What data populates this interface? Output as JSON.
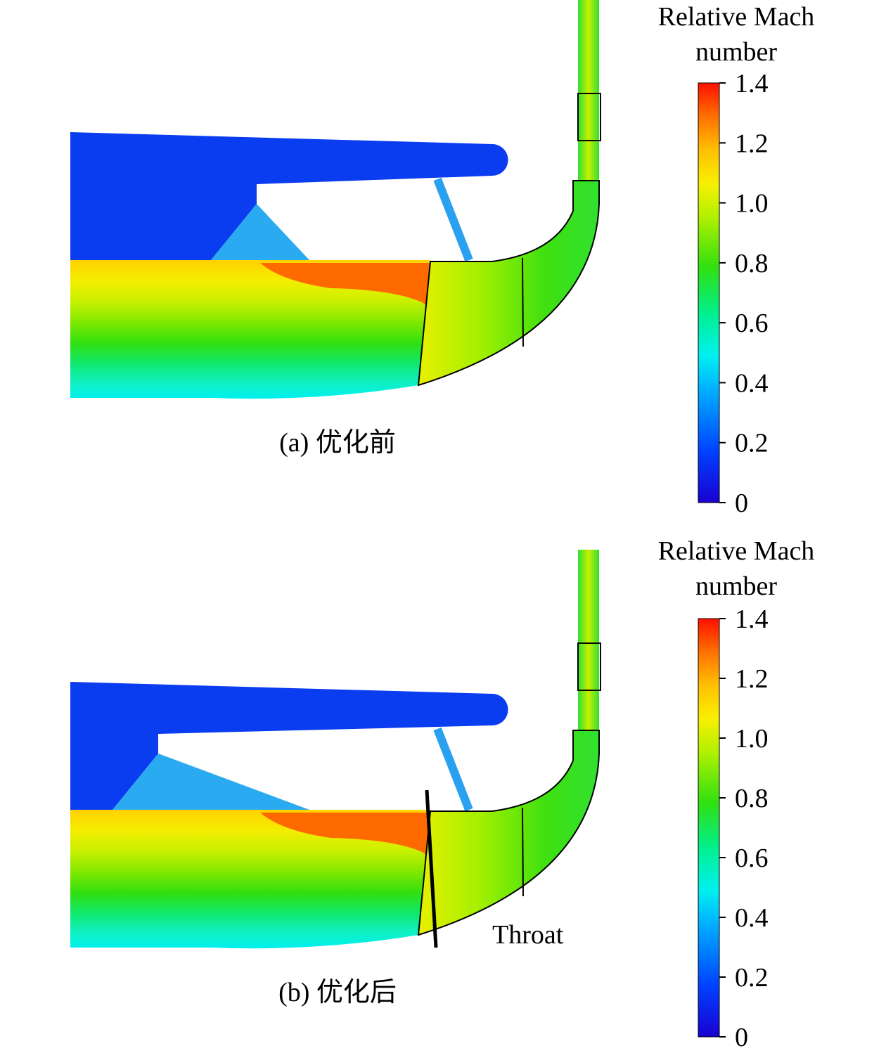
{
  "panels": [
    {
      "caption": "(a) 优化前",
      "colorbar": {
        "title": [
          "Relative Mach",
          "number"
        ],
        "range": [
          0,
          1.4
        ],
        "ticks": [
          0,
          0.2,
          0.4,
          0.6,
          0.8,
          {
            "value": 1,
            "label": "1.0"
          },
          1.2,
          1.4
        ]
      }
    },
    {
      "caption": "(b) 优化后",
      "annotation": "Throat",
      "colorbar": {
        "title": [
          "Relative Mach",
          "number"
        ],
        "range": [
          0,
          1.4
        ],
        "ticks": [
          0,
          0.2,
          0.4,
          0.6,
          0.8,
          {
            "value": 1,
            "label": "1.0"
          },
          1.2,
          1.4
        ]
      }
    }
  ]
}
